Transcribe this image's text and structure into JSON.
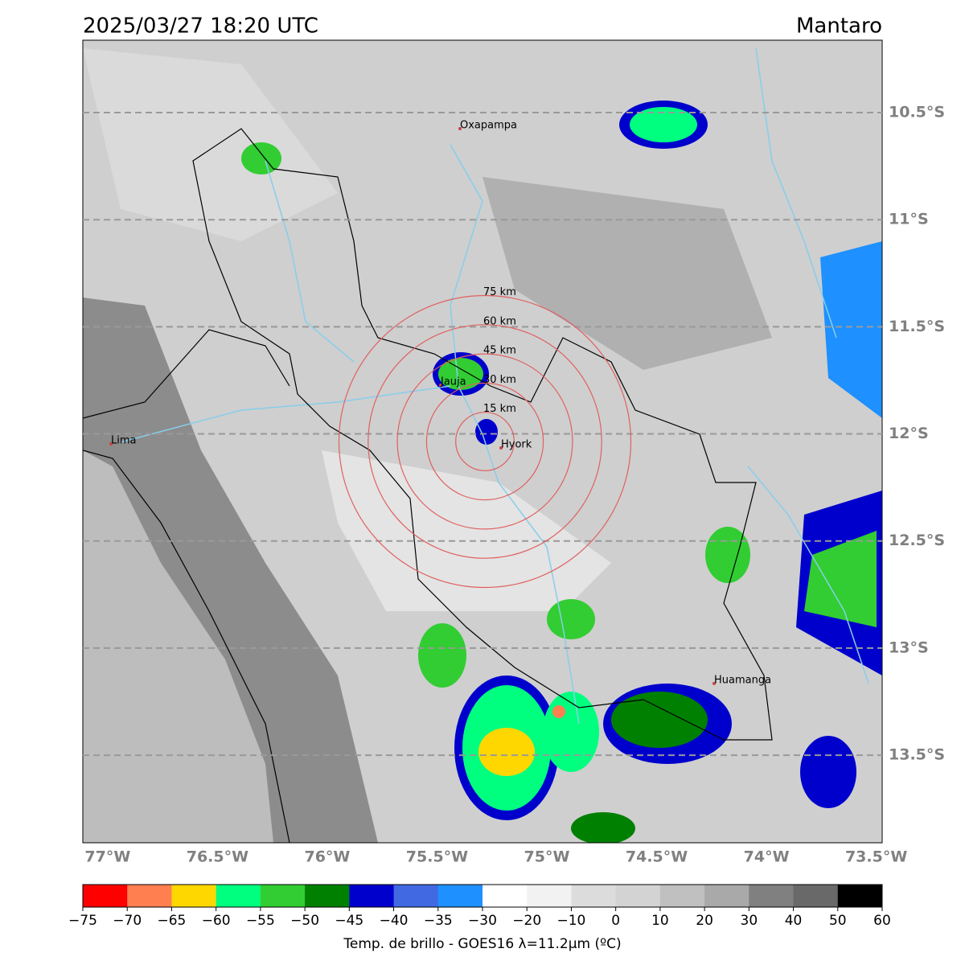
{
  "map": {
    "title": "2025/03/27 18:20 UTC",
    "region": "Mantaro",
    "lon_lim": [
      -77.113,
      -73.473
    ],
    "lat_lim": [
      -10.162,
      -13.909
    ],
    "lon_ticks": [
      {
        "value": -77,
        "label": "77°W"
      },
      {
        "value": -76.5,
        "label": "76.5°W"
      },
      {
        "value": -76,
        "label": "76°W"
      },
      {
        "value": -75.5,
        "label": "75.5°W"
      },
      {
        "value": -75,
        "label": "75°W"
      },
      {
        "value": -74.5,
        "label": "74.5°W"
      },
      {
        "value": -74,
        "label": "74°W"
      },
      {
        "value": -73.5,
        "label": "73.5°W"
      }
    ],
    "lat_ticks": [
      {
        "value": -10.5,
        "label": "10.5°S"
      },
      {
        "value": -11,
        "label": "11°S"
      },
      {
        "value": -11.5,
        "label": "11.5°S"
      },
      {
        "value": -12,
        "label": "12°S"
      },
      {
        "value": -12.5,
        "label": "12.5°S"
      },
      {
        "value": -13,
        "label": "13°S"
      },
      {
        "value": -13.5,
        "label": "13.5°S"
      }
    ],
    "rings": [
      {
        "value": 15,
        "label": "15 km"
      },
      {
        "value": 30,
        "label": "30 km"
      },
      {
        "value": 45,
        "label": "45 km"
      },
      {
        "value": 60,
        "label": "60 km"
      },
      {
        "value": 75,
        "label": "75 km"
      }
    ],
    "places": [
      "Oxapampa",
      "Jauja",
      "Hyork",
      "Lima",
      "Huamanga"
    ],
    "colorbar": {
      "label": "Temp. de brillo - GOES16 λ=11.2μm (ºC)",
      "ticks": [
        {
          "value": -75,
          "label": "−75"
        },
        {
          "value": -70,
          "label": "−70"
        },
        {
          "value": -65,
          "label": "−65"
        },
        {
          "value": -60,
          "label": "−60"
        },
        {
          "value": -55,
          "label": "−55"
        },
        {
          "value": -50,
          "label": "−50"
        },
        {
          "value": -45,
          "label": "−45"
        },
        {
          "value": -40,
          "label": "−40"
        },
        {
          "value": -35,
          "label": "−35"
        },
        {
          "value": -30,
          "label": "−30"
        },
        {
          "value": -20,
          "label": "−20"
        },
        {
          "value": -10,
          "label": "−10"
        },
        0,
        10,
        20,
        30,
        40,
        50,
        60
      ],
      "colors": [
        "#ff0000",
        "#ff7f50",
        "#ffd700",
        "#00ff7f",
        "#32cd32",
        "#008000",
        "#0000cd",
        "#4169e1",
        "#1e90ff",
        "#ffffff",
        "#f2f2f2",
        "#dcdcdc",
        "#d3d3d3",
        "#c0c0c0",
        "#a9a9a9",
        "#808080",
        "#696969",
        "#000000"
      ]
    }
  }
}
